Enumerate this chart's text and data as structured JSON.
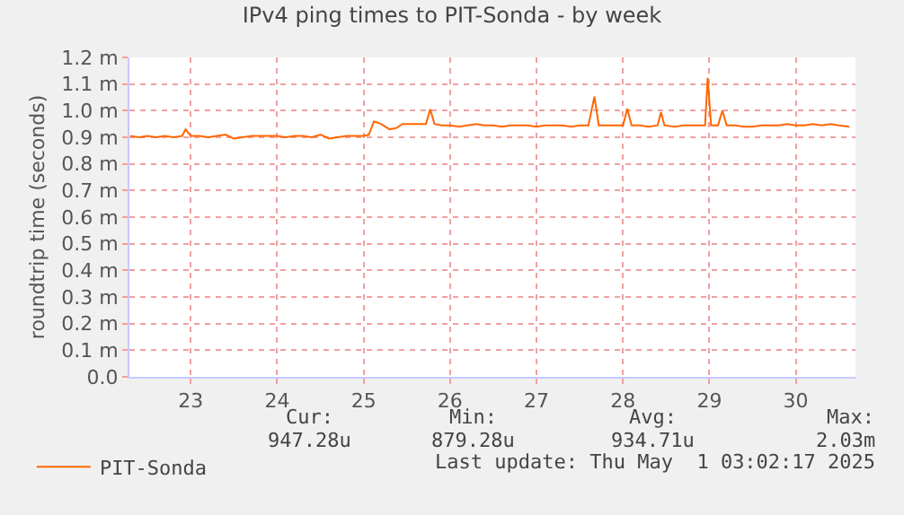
{
  "chart_data": {
    "type": "line",
    "title": "IPv4 ping times to PIT-Sonda - by week",
    "ylabel": "roundtrip time (seconds)",
    "x": [
      22.3,
      22.4,
      22.5,
      22.6,
      22.7,
      22.8,
      22.9,
      22.94,
      23.0,
      23.1,
      23.2,
      23.3,
      23.4,
      23.5,
      23.6,
      23.7,
      23.8,
      23.9,
      24.0,
      24.1,
      24.2,
      24.3,
      24.4,
      24.5,
      24.6,
      24.7,
      24.8,
      24.9,
      25.0,
      25.06,
      25.12,
      25.2,
      25.3,
      25.38,
      25.45,
      25.55,
      25.65,
      25.72,
      25.77,
      25.82,
      25.9,
      26.0,
      26.1,
      26.2,
      26.3,
      26.4,
      26.5,
      26.6,
      26.7,
      26.8,
      26.9,
      27.0,
      27.1,
      27.2,
      27.3,
      27.4,
      27.5,
      27.6,
      27.67,
      27.72,
      27.8,
      27.9,
      28.0,
      28.05,
      28.1,
      28.2,
      28.3,
      28.4,
      28.44,
      28.48,
      28.6,
      28.7,
      28.8,
      28.9,
      28.95,
      28.98,
      29.02,
      29.1,
      29.15,
      29.2,
      29.3,
      29.4,
      29.5,
      29.6,
      29.7,
      29.8,
      29.9,
      30.0,
      30.1,
      30.2,
      30.3,
      30.4,
      30.5,
      30.62
    ],
    "series": [
      {
        "name": "PIT-Sonda",
        "color": "#ff6600",
        "values": [
          0.905,
          0.9,
          0.905,
          0.9,
          0.905,
          0.9,
          0.905,
          0.93,
          0.905,
          0.905,
          0.9,
          0.905,
          0.91,
          0.895,
          0.9,
          0.905,
          0.905,
          0.905,
          0.905,
          0.9,
          0.905,
          0.905,
          0.9,
          0.91,
          0.895,
          0.9,
          0.905,
          0.905,
          0.905,
          0.91,
          0.96,
          0.95,
          0.93,
          0.935,
          0.95,
          0.95,
          0.95,
          0.95,
          1.005,
          0.95,
          0.945,
          0.945,
          0.94,
          0.945,
          0.95,
          0.945,
          0.945,
          0.94,
          0.945,
          0.945,
          0.945,
          0.94,
          0.945,
          0.945,
          0.945,
          0.94,
          0.945,
          0.945,
          1.053,
          0.945,
          0.945,
          0.945,
          0.945,
          1.007,
          0.945,
          0.945,
          0.94,
          0.945,
          0.994,
          0.945,
          0.94,
          0.945,
          0.945,
          0.945,
          0.945,
          1.123,
          0.945,
          0.945,
          1.0,
          0.945,
          0.945,
          0.94,
          0.94,
          0.945,
          0.945,
          0.945,
          0.95,
          0.945,
          0.945,
          0.95,
          0.945,
          0.95,
          0.945,
          0.94
        ]
      }
    ],
    "xlim": [
      22.29,
      30.69
    ],
    "xticks": [
      23,
      24,
      25,
      26,
      27,
      28,
      29,
      30
    ],
    "ylim": [
      0,
      1.2
    ],
    "yticks": [
      {
        "value": 0,
        "label": "0.0"
      },
      {
        "value": 0.1,
        "label": "0.1 m"
      },
      {
        "value": 0.2,
        "label": "0.2 m"
      },
      {
        "value": 0.3,
        "label": "0.3 m"
      },
      {
        "value": 0.4,
        "label": "0.4 m"
      },
      {
        "value": 0.5,
        "label": "0.5 m"
      },
      {
        "value": 0.6,
        "label": "0.6 m"
      },
      {
        "value": 0.7,
        "label": "0.7 m"
      },
      {
        "value": 0.8,
        "label": "0.8 m"
      },
      {
        "value": 0.9,
        "label": "0.9 m"
      },
      {
        "value": 1.0,
        "label": "1.0 m"
      },
      {
        "value": 1.1,
        "label": "1.1 m"
      },
      {
        "value": 1.2,
        "label": "1.2 m"
      }
    ],
    "grid": true,
    "legend": "bottom left",
    "marker": "none",
    "line_style": "solid",
    "annotations": [
      "Cur:",
      "Min:",
      "Avg:",
      "Max:",
      "947.28u",
      "879.28u",
      "934.71u",
      "2.03m",
      "Last update: Thu May  1 03:02:17 2025"
    ]
  }
}
